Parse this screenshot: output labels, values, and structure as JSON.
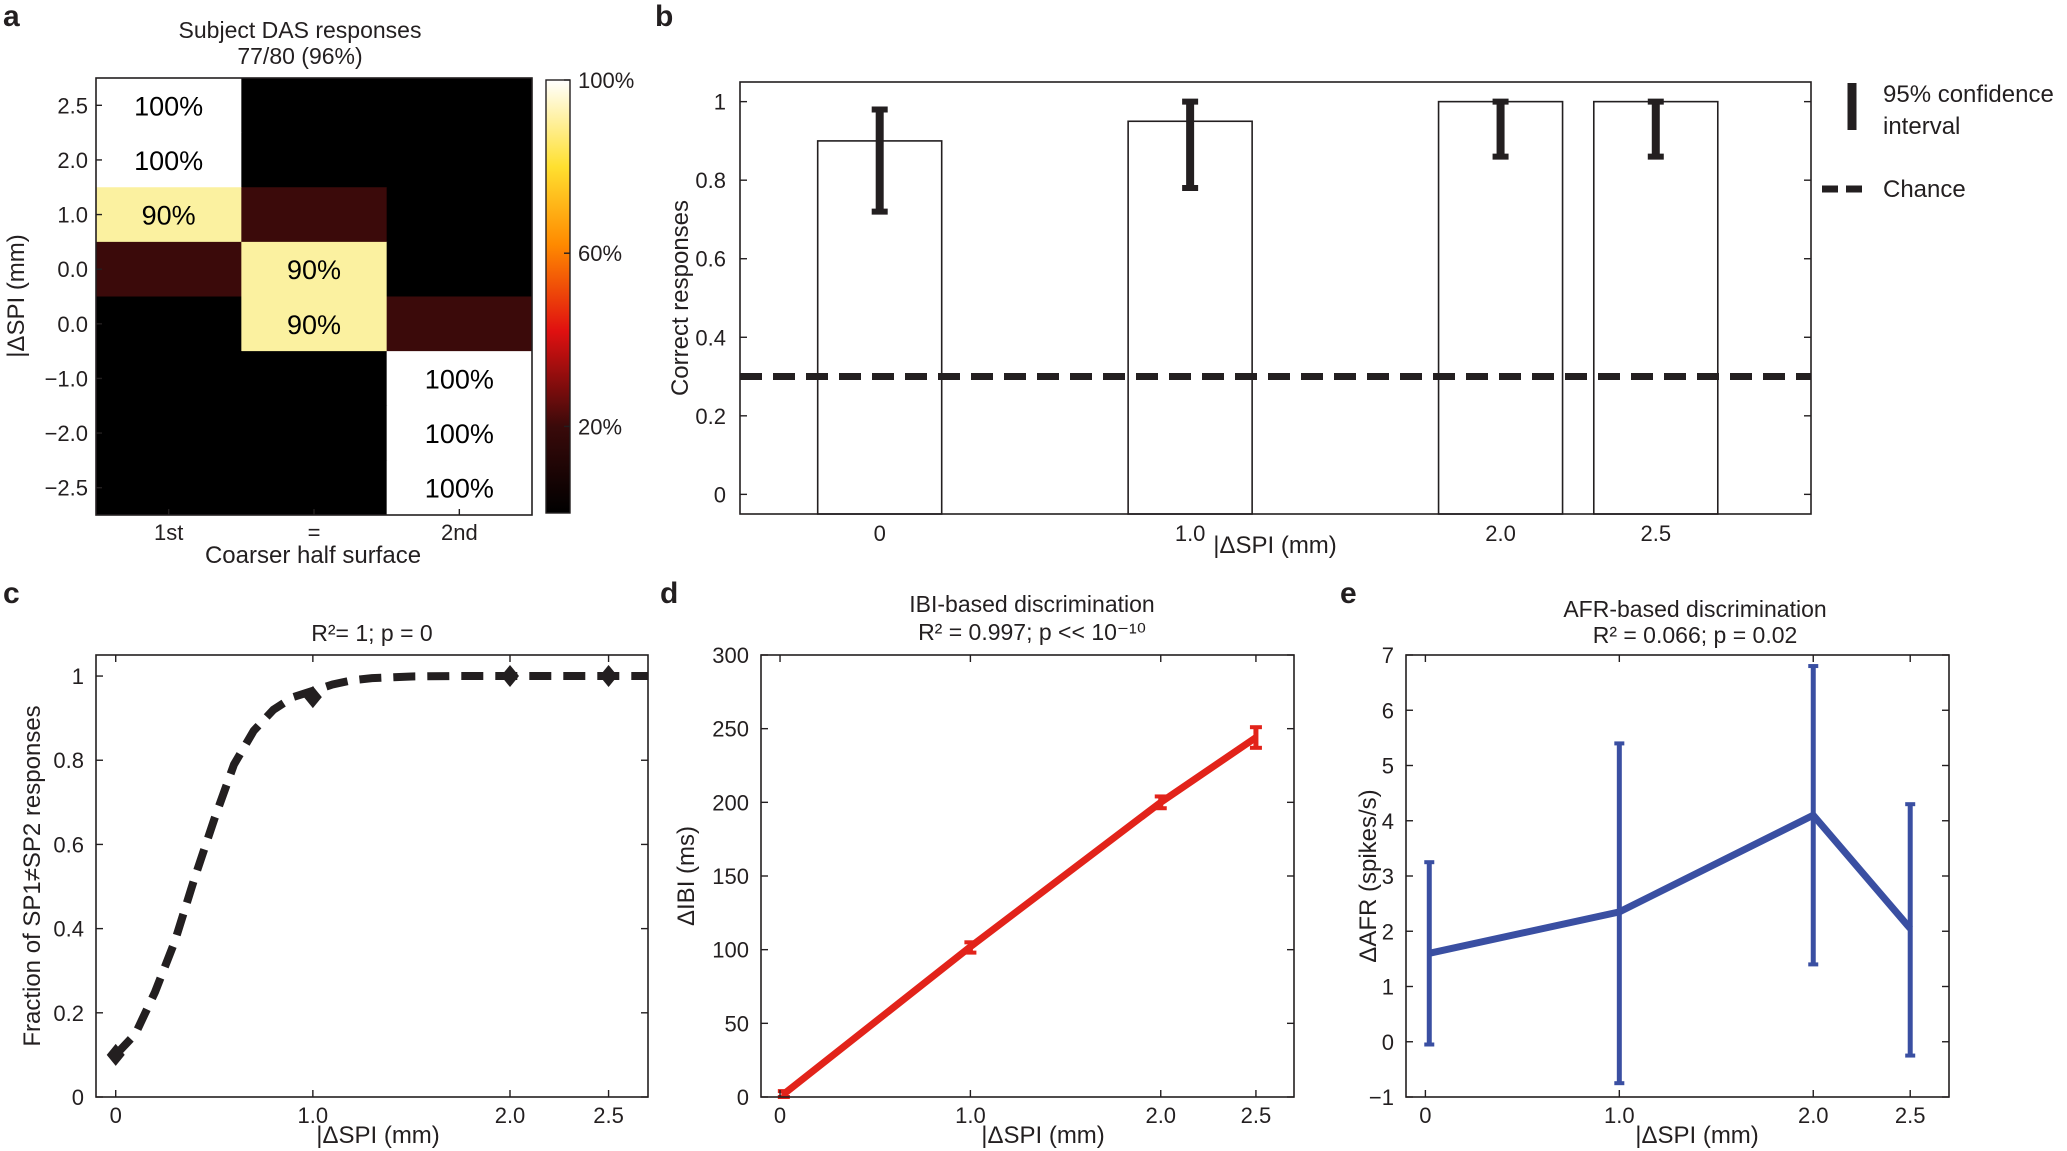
{
  "panels": {
    "a": {
      "letter": "a",
      "title": "Subject DAS responses",
      "subtitle": "77/80 (96%)"
    },
    "b": {
      "letter": "b"
    },
    "c": {
      "letter": "c"
    },
    "d": {
      "letter": "d"
    },
    "e": {
      "letter": "e"
    }
  },
  "chart_data": [
    {
      "id": "a",
      "type": "heatmap",
      "title": "Subject DAS responses",
      "subtitle": "77/80 (96%)",
      "xlabel": "Coarser half surface",
      "ylabel": "|ΔSPI (mm)",
      "x_categories": [
        "1st",
        "=",
        "2nd"
      ],
      "y_categories": [
        "2.5",
        "2.0",
        "1.0",
        "0.0",
        "0.0",
        "−1.0",
        "−2.0",
        "−2.5"
      ],
      "values": [
        [
          100,
          0,
          0
        ],
        [
          100,
          0,
          0
        ],
        [
          90,
          10,
          0
        ],
        [
          10,
          90,
          0
        ],
        [
          0,
          90,
          10
        ],
        [
          0,
          0,
          100
        ],
        [
          0,
          0,
          100
        ],
        [
          0,
          0,
          100
        ]
      ],
      "cell_labels": [
        [
          "100%",
          "",
          ""
        ],
        [
          "100%",
          "",
          ""
        ],
        [
          "90%",
          "",
          ""
        ],
        [
          "",
          "90%",
          ""
        ],
        [
          "",
          "90%",
          ""
        ],
        [
          "",
          "",
          "100%"
        ],
        [
          "",
          "",
          "100%"
        ],
        [
          "",
          "",
          "100%"
        ]
      ],
      "colorbar": {
        "ticks": [
          {
            "value": 100,
            "label": "100%"
          },
          {
            "value": 60,
            "label": "60%"
          },
          {
            "value": 20,
            "label": "20%"
          }
        ],
        "range": [
          0,
          100
        ]
      }
    },
    {
      "id": "b",
      "type": "bar",
      "xlabel": "|ΔSPI (mm)",
      "ylabel": "Correct responses",
      "ylim": [
        -0.05,
        1.05
      ],
      "categories": [
        "0",
        "1.0",
        "2.0",
        "2.5"
      ],
      "x_positions": [
        0,
        1.0,
        2.0,
        2.5
      ],
      "xlim": [
        -0.45,
        3.0
      ],
      "values": [
        0.9,
        0.95,
        1.0,
        1.0
      ],
      "ci_low": [
        0.72,
        0.78,
        0.86,
        0.86
      ],
      "ci_high": [
        0.98,
        1.0,
        1.0,
        1.0
      ],
      "chance": 0.3,
      "yticks": [
        "0",
        "0.2",
        "0.4",
        "0.6",
        "0.8",
        "1"
      ],
      "legend": [
        {
          "label_line1": "95% confidence",
          "label_line2": "interval"
        },
        {
          "label_line1": "Chance"
        }
      ]
    },
    {
      "id": "c",
      "type": "line",
      "title": "R²= 1; p = 0",
      "xlabel": "|ΔSPI (mm)",
      "ylabel": "Fraction of SP1≠SP2 responses",
      "xlim": [
        -0.1,
        2.7
      ],
      "ylim": [
        0,
        1.05
      ],
      "xticks": [
        "0",
        "1.0",
        "2.0",
        "2.5"
      ],
      "yticks": [
        "0",
        "0.2",
        "0.4",
        "0.6",
        "0.8",
        "1"
      ],
      "fit_curve": {
        "x": [
          0,
          0.1,
          0.2,
          0.3,
          0.4,
          0.5,
          0.6,
          0.7,
          0.8,
          0.9,
          1.0,
          1.1,
          1.2,
          1.3,
          1.5,
          1.7,
          2.0,
          2.3,
          2.7
        ],
        "y": [
          0.1,
          0.15,
          0.25,
          0.37,
          0.52,
          0.66,
          0.79,
          0.87,
          0.92,
          0.95,
          0.965,
          0.98,
          0.99,
          0.995,
          0.999,
          1.0,
          1.0,
          1.0,
          1.0
        ]
      },
      "points": {
        "x": [
          0,
          1.0,
          2.0,
          2.5
        ],
        "y": [
          0.1,
          0.95,
          1.0,
          1.0
        ]
      }
    },
    {
      "id": "d",
      "type": "line",
      "title": "IBI-based discrimination",
      "subtitle": "R² = 0.997; p << 10⁻¹⁰",
      "xlabel": "|ΔSPI (mm)",
      "ylabel": "ΔIBI (ms)",
      "xlim": [
        -0.1,
        2.7
      ],
      "ylim": [
        0,
        300
      ],
      "xticks": [
        "0",
        "1.0",
        "2.0",
        "2.5"
      ],
      "yticks": [
        "0",
        "50",
        "100",
        "150",
        "200",
        "250",
        "300"
      ],
      "x": [
        0.02,
        1.0,
        2.0,
        2.5
      ],
      "y": [
        2,
        102,
        200,
        244
      ],
      "err_low": [
        0,
        98,
        196,
        237
      ],
      "err_high": [
        4,
        105,
        204,
        251
      ],
      "color": "#e2231a"
    },
    {
      "id": "e",
      "type": "line",
      "title": "AFR-based discrimination",
      "subtitle": "R² = 0.066; p = 0.02",
      "xlabel": "|ΔSPI (mm)",
      "ylabel": "ΔAFR (spikes/s)",
      "xlim": [
        -0.1,
        2.7
      ],
      "ylim": [
        -1,
        7
      ],
      "xticks": [
        "0",
        "1.0",
        "2.0",
        "2.5"
      ],
      "yticks": [
        "−1",
        "0",
        "1",
        "2",
        "3",
        "4",
        "5",
        "6",
        "7"
      ],
      "x": [
        0.02,
        1.0,
        2.0,
        2.5
      ],
      "y": [
        1.6,
        2.35,
        4.1,
        2.05
      ],
      "err_low": [
        -0.05,
        -0.75,
        1.4,
        -0.25
      ],
      "err_high": [
        3.25,
        5.4,
        6.8,
        4.3
      ],
      "color": "#3a4fa2"
    }
  ]
}
